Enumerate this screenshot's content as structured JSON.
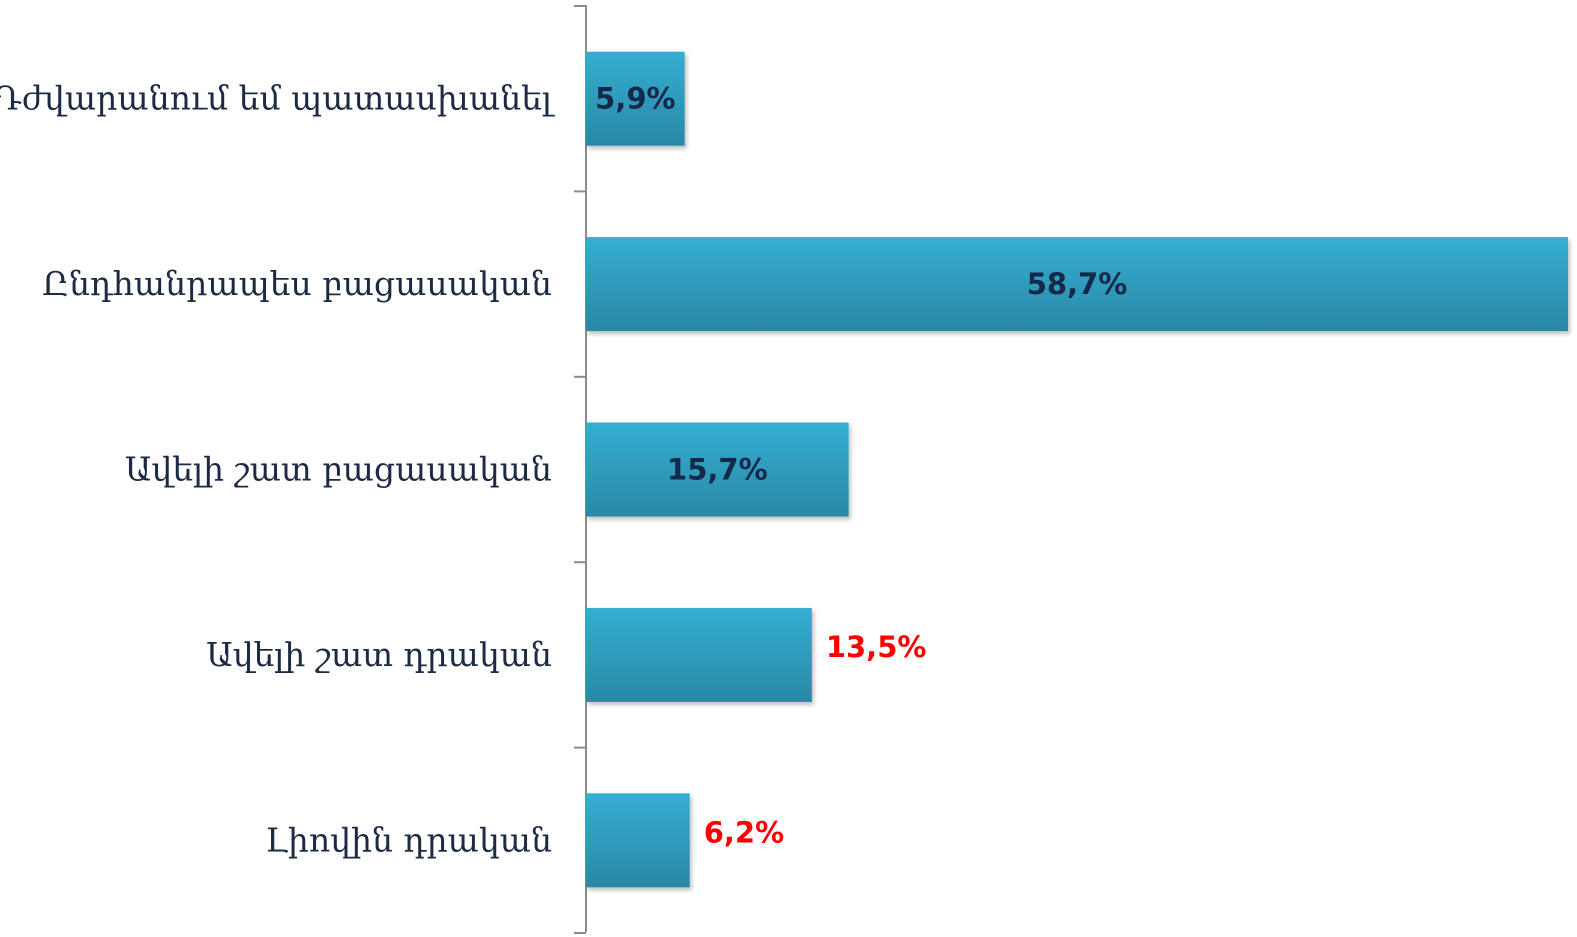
{
  "chart_data": {
    "type": "bar",
    "orientation": "horizontal",
    "categories": [
      "Դժվարանում եմ պատասխանել",
      "Ընդհանրապես բացասական",
      "Ավելի շատ բացասական",
      "Ավելի շատ դրական",
      "Լիովին դրական"
    ],
    "values": [
      5.9,
      58.7,
      15.7,
      13.5,
      6.2
    ],
    "value_labels": [
      "5,9%",
      "58,7%",
      "15,7%",
      "13,5%",
      "6,2%"
    ],
    "value_label_colors": [
      "#14284a",
      "#14284a",
      "#14284a",
      "#ff0000",
      "#ff0000"
    ],
    "value_label_positions": [
      "inside",
      "inside",
      "inside",
      "outside",
      "outside"
    ],
    "color": "#35aed3",
    "xlim": [
      0,
      58.7
    ]
  }
}
